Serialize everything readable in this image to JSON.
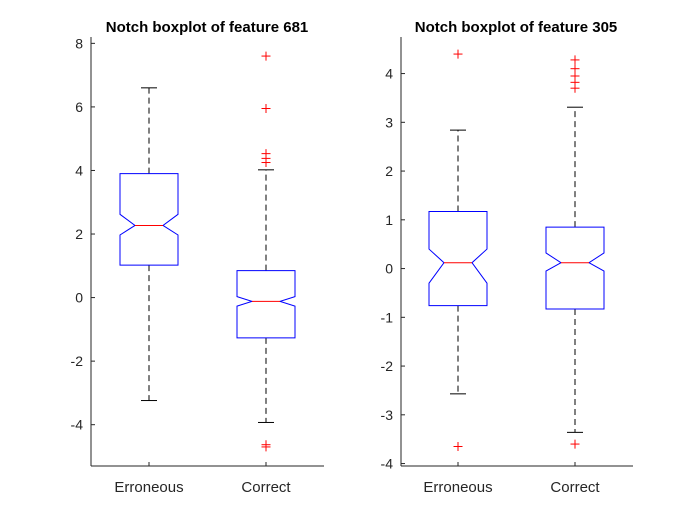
{
  "chart_data": [
    {
      "type": "boxplot",
      "title": "Notch boxplot of feature 681",
      "categories": [
        "Erroneous",
        "Correct"
      ],
      "ylim": [
        -5.3,
        8.2
      ],
      "yticks": [
        -4,
        -2,
        0,
        2,
        4,
        6,
        8
      ],
      "notched": true,
      "colors": {
        "box": "#0000ff",
        "median": "#ff0000",
        "whisker": "#000000",
        "outlier": "#ff0000"
      },
      "boxes": [
        {
          "category": "Erroneous",
          "q1": 1.02,
          "median": 2.27,
          "q3": 3.9,
          "notch_low": 1.97,
          "notch_high": 2.62,
          "whisker_low": -3.24,
          "whisker_high": 6.6,
          "outliers": []
        },
        {
          "category": "Correct",
          "q1": -1.27,
          "median": -0.12,
          "q3": 0.85,
          "notch_low": -0.27,
          "notch_high": 0.03,
          "whisker_low": -3.93,
          "whisker_high": 4.02,
          "outliers": [
            7.6,
            5.95,
            4.53,
            4.38,
            4.25,
            -4.63,
            -4.7
          ]
        }
      ]
    },
    {
      "type": "boxplot",
      "title": "Notch boxplot of feature 305",
      "categories": [
        "Erroneous",
        "Correct"
      ],
      "ylim": [
        -4.05,
        4.75
      ],
      "yticks": [
        -4,
        -3,
        -2,
        -1,
        0,
        1,
        2,
        3,
        4
      ],
      "notched": true,
      "colors": {
        "box": "#0000ff",
        "median": "#ff0000",
        "whisker": "#000000",
        "outlier": "#ff0000"
      },
      "boxes": [
        {
          "category": "Erroneous",
          "q1": -0.76,
          "median": 0.12,
          "q3": 1.17,
          "notch_low": -0.3,
          "notch_high": 0.4,
          "whisker_low": -2.57,
          "whisker_high": 2.84,
          "outliers": [
            4.4,
            -3.65
          ]
        },
        {
          "category": "Correct",
          "q1": -0.83,
          "median": 0.12,
          "q3": 0.85,
          "notch_low": -0.05,
          "notch_high": 0.32,
          "whisker_low": -3.36,
          "whisker_high": 3.31,
          "outliers": [
            4.28,
            4.1,
            3.95,
            3.82,
            3.7,
            -3.6
          ]
        }
      ]
    }
  ]
}
